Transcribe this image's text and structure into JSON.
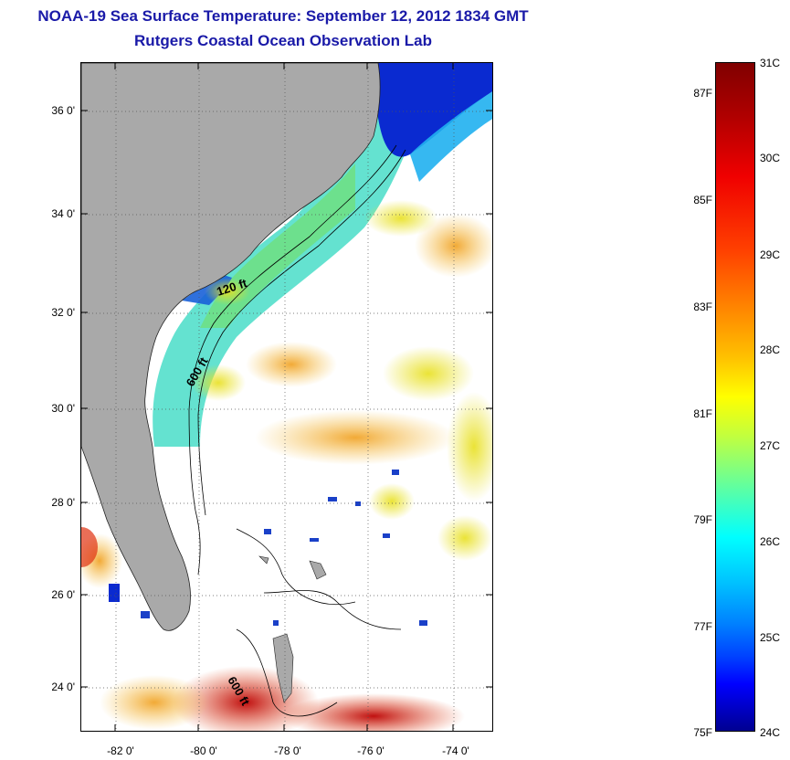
{
  "title": {
    "line1": "NOAA-19 Sea Surface Temperature:  September 12, 2012 1834 GMT",
    "line2": "Rutgers Coastal Ocean Observation Lab"
  },
  "map": {
    "y_ticks": [
      "36 0'",
      "34 0'",
      "32 0'",
      "30 0'",
      "28 0'",
      "26 0'",
      "24 0'"
    ],
    "x_ticks": [
      "-82 0'",
      "-80 0'",
      "-78 0'",
      "-76 0'",
      "-74 0'"
    ],
    "contour_labels": [
      "120 ft",
      "600 ft",
      "600 ft"
    ],
    "land_color": "#a9a9a9",
    "no_data_color": "#ffffff"
  },
  "colorbar": {
    "celsius_labels": [
      "31C",
      "30C",
      "29C",
      "28C",
      "27C",
      "26C",
      "25C",
      "24C"
    ],
    "fahrenheit_labels": [
      "87F",
      "85F",
      "83F",
      "81F",
      "79F",
      "77F",
      "75F"
    ],
    "colormap": "jet"
  }
}
